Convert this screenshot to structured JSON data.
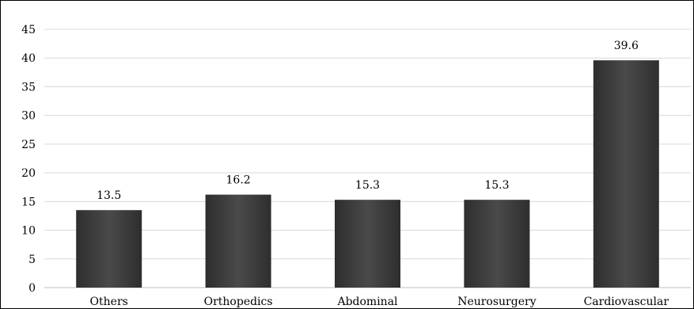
{
  "chart_data": {
    "type": "bar",
    "categories": [
      "Others",
      "Orthopedics",
      "Abdominal",
      "Neurosurgery",
      "Cardiovascular"
    ],
    "values": [
      13.5,
      16.2,
      15.3,
      15.3,
      39.6
    ],
    "data_labels": [
      "13.5",
      "16.2",
      "15.3",
      "15.3",
      "39.6"
    ],
    "y_ticks": [
      "0",
      "5",
      "10",
      "15",
      "20",
      "25",
      "30",
      "35",
      "40",
      "45"
    ],
    "ylim": [
      0,
      45
    ],
    "title": "",
    "xlabel": "",
    "ylabel": "",
    "grid": true,
    "legend": "none",
    "bar_color": "#3a3a3a",
    "bar_color_light": "#555555"
  }
}
